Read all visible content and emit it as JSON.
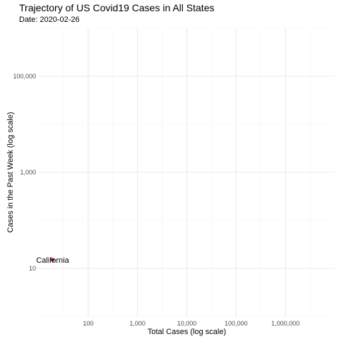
{
  "chart_data": {
    "type": "scatter",
    "title": "Trajectory of US Covid19 Cases in All States",
    "subtitle": "Date: 2020-02-26",
    "xlabel": "Total Cases (log scale)",
    "ylabel": "Cases in the Past Week (log scale)",
    "x_scale": "log",
    "y_scale": "log",
    "xlim": [
      10,
      10000000
    ],
    "ylim": [
      1,
      1000000
    ],
    "x_ticks": [
      {
        "value": 100,
        "label": "100"
      },
      {
        "value": 1000,
        "label": "1,000"
      },
      {
        "value": 10000,
        "label": "10,000"
      },
      {
        "value": 100000,
        "label": "100,000"
      },
      {
        "value": 1000000,
        "label": "1,000,000"
      }
    ],
    "y_ticks": [
      {
        "value": 10,
        "label": "10"
      },
      {
        "value": 1000,
        "label": "1,000"
      },
      {
        "value": 100000,
        "label": "100,000"
      }
    ],
    "grid": true,
    "legend": "none",
    "point_color": "#b2182b",
    "points": [
      {
        "label": "California",
        "x": 19,
        "y": 15
      }
    ]
  }
}
